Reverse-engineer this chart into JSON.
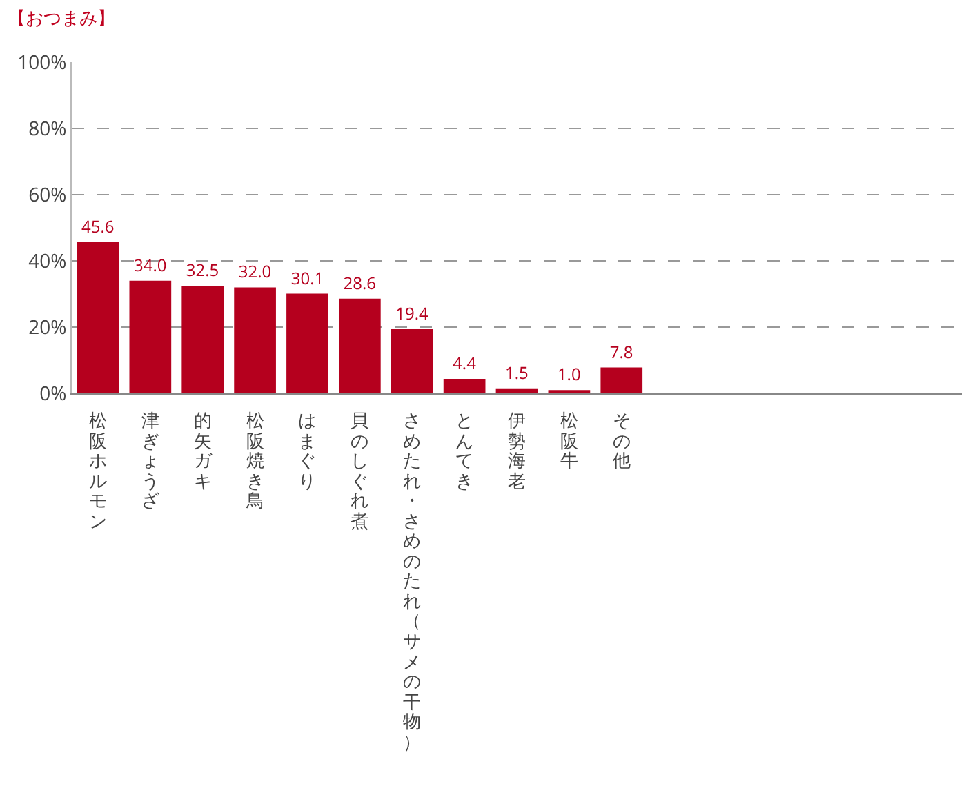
{
  "chart_data": {
    "type": "bar",
    "title": "【おつまみ】",
    "categories": [
      "松阪ホルモン",
      "津ぎょうざ",
      "的矢ガキ",
      "松阪焼き鳥",
      "はまぐり",
      "貝のしぐれ煮",
      "さめたれ・さめのたれ（サメの干物）",
      "とんてき",
      "伊勢海老",
      "松阪牛",
      "その他",
      null,
      null,
      null,
      null,
      null,
      null
    ],
    "values": [
      45.6,
      34.0,
      32.5,
      32.0,
      30.1,
      28.6,
      19.4,
      4.4,
      1.5,
      1.0,
      7.8,
      null,
      null,
      null,
      null,
      null,
      null
    ],
    "value_labels": [
      "45.6",
      "34.0",
      "32.5",
      "32.0",
      "30.1",
      "28.6",
      "19.4",
      "4.4",
      "1.5",
      "1.0",
      "7.8",
      null,
      null,
      null,
      null,
      null,
      null
    ],
    "color": "#b5001e",
    "ylim": [
      0,
      100
    ],
    "yticks": [
      {
        "value": 0,
        "label": "0%"
      },
      {
        "value": 20,
        "label": "20%"
      },
      {
        "value": 40,
        "label": "40%"
      },
      {
        "value": 60,
        "label": "60%"
      },
      {
        "value": 80,
        "label": "80%"
      },
      {
        "value": 100,
        "label": "100%"
      }
    ],
    "grid": "y",
    "legend": false
  }
}
